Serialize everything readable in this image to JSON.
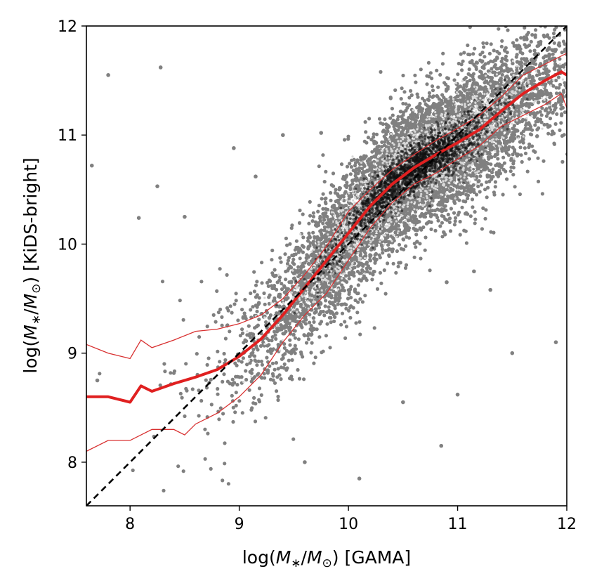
{
  "chart_data": {
    "type": "scatter",
    "title": "",
    "xlabel": {
      "prefix": "log(",
      "m": "M",
      "sub_star": "∗",
      "slash": "/",
      "sub_sun": "⊙",
      "suffix": ") [GAMA]"
    },
    "ylabel": {
      "prefix": "log(",
      "m": "M",
      "sub_star": "∗",
      "slash": "/",
      "sub_sun": "⊙",
      "suffix": ") [KiDS-bright]"
    },
    "xlim": [
      7.6,
      12.0
    ],
    "ylim": [
      7.6,
      12.0
    ],
    "x_ticks": [
      8,
      9,
      10,
      11,
      12
    ],
    "y_ticks": [
      8,
      9,
      10,
      11,
      12
    ],
    "x_tick_labels": [
      "8",
      "9",
      "10",
      "11",
      "12"
    ],
    "y_tick_labels": [
      "8",
      "9",
      "10",
      "11",
      "12"
    ],
    "grid": false,
    "colors": {
      "points_outer": "#808080",
      "points_mid": "#d8d8d8",
      "points_core": "#111111",
      "median_line": "#e02020",
      "percentile_lines": "#d83030",
      "one_to_one": "#000000"
    },
    "one_to_one_line": [
      [
        7.6,
        7.6
      ],
      [
        12.0,
        12.0
      ]
    ],
    "median": {
      "x": [
        7.6,
        7.8,
        8.0,
        8.1,
        8.2,
        8.4,
        8.6,
        8.8,
        9.0,
        9.2,
        9.4,
        9.6,
        9.8,
        10.0,
        10.2,
        10.4,
        10.6,
        10.8,
        11.0,
        11.2,
        11.4,
        11.6,
        11.8,
        11.95,
        12.0
      ],
      "y": [
        8.6,
        8.6,
        8.55,
        8.7,
        8.65,
        8.72,
        8.78,
        8.85,
        8.97,
        9.13,
        9.35,
        9.6,
        9.85,
        10.1,
        10.35,
        10.55,
        10.7,
        10.82,
        10.93,
        11.05,
        11.22,
        11.38,
        11.5,
        11.58,
        11.55
      ]
    },
    "upper_percentile": {
      "x": [
        7.6,
        7.8,
        8.0,
        8.1,
        8.2,
        8.4,
        8.6,
        8.8,
        9.0,
        9.2,
        9.4,
        9.6,
        9.8,
        10.0,
        10.2,
        10.4,
        10.6,
        10.8,
        11.0,
        11.2,
        11.4,
        11.6,
        11.8,
        12.0
      ],
      "y": [
        9.08,
        9.0,
        8.95,
        9.12,
        9.05,
        9.12,
        9.2,
        9.22,
        9.27,
        9.35,
        9.5,
        9.72,
        9.98,
        10.3,
        10.5,
        10.68,
        10.82,
        10.95,
        11.06,
        11.18,
        11.35,
        11.55,
        11.65,
        11.75
      ]
    },
    "lower_percentile": {
      "x": [
        7.6,
        7.8,
        8.0,
        8.2,
        8.4,
        8.5,
        8.6,
        8.8,
        9.0,
        9.2,
        9.4,
        9.6,
        9.8,
        10.0,
        10.2,
        10.4,
        10.6,
        10.8,
        11.0,
        11.2,
        11.4,
        11.6,
        11.8,
        11.95,
        12.0
      ],
      "y": [
        8.1,
        8.2,
        8.2,
        8.3,
        8.3,
        8.25,
        8.35,
        8.45,
        8.6,
        8.8,
        9.1,
        9.35,
        9.55,
        9.85,
        10.15,
        10.38,
        10.55,
        10.65,
        10.78,
        10.9,
        11.08,
        11.18,
        11.28,
        11.38,
        11.25
      ]
    },
    "scatter_population": {
      "relation_pivot": [
        10.6,
        10.6
      ],
      "outlier_points": [
        [
          7.8,
          11.55
        ],
        [
          8.28,
          11.62
        ],
        [
          7.65,
          10.72
        ],
        [
          8.25,
          10.53
        ],
        [
          8.08,
          10.24
        ],
        [
          8.5,
          10.25
        ],
        [
          8.95,
          10.88
        ],
        [
          9.15,
          10.62
        ],
        [
          9.4,
          11.0
        ],
        [
          9.75,
          11.02
        ],
        [
          11.9,
          9.1
        ],
        [
          11.5,
          9.0
        ],
        [
          11.0,
          8.62
        ],
        [
          10.85,
          8.15
        ],
        [
          10.5,
          8.55
        ],
        [
          10.9,
          9.65
        ],
        [
          11.15,
          9.75
        ],
        [
          11.3,
          9.58
        ],
        [
          9.6,
          8.0
        ],
        [
          10.1,
          7.85
        ],
        [
          7.7,
          8.75
        ]
      ]
    }
  }
}
